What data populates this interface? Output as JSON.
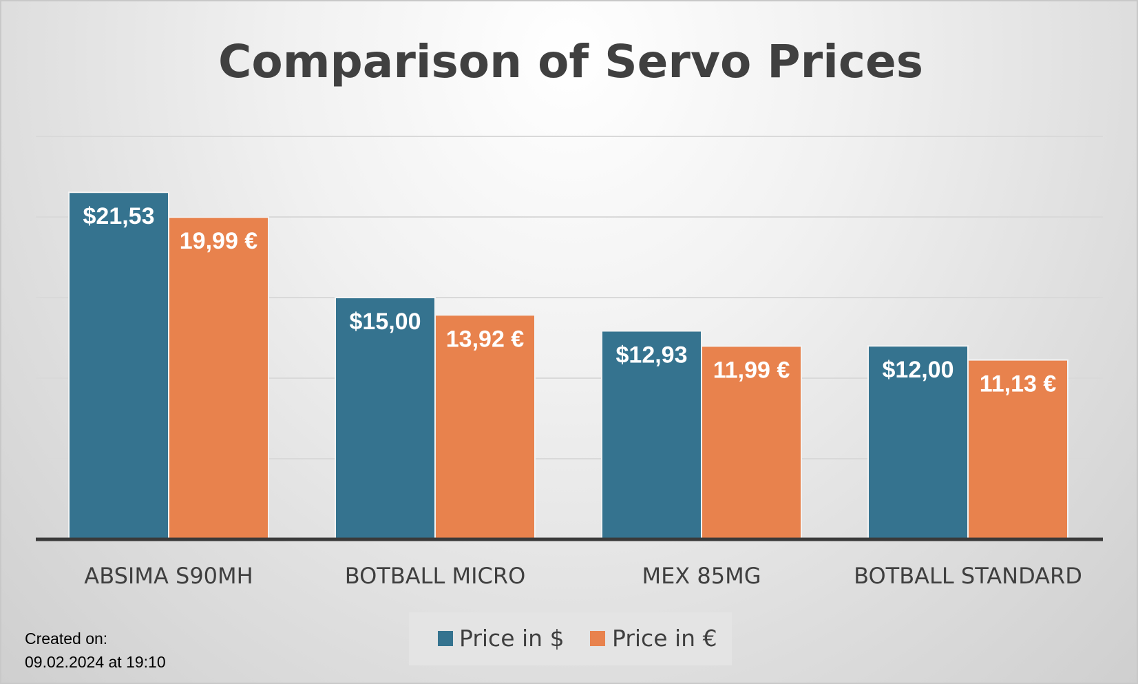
{
  "colors": {
    "series_usd": "#35738f",
    "series_eur": "#e8824d",
    "gridline": "#d9d9d9",
    "baseline": "#3a3a3a",
    "legend_bg": "#e4e4e4"
  },
  "chart_data": {
    "type": "bar",
    "title": "Comparison of Servo Prices",
    "xlabel": "",
    "ylabel": "",
    "categories": [
      "ABSIMA S90MH",
      "BOTBALL MICRO",
      "MEX 85MG",
      "BOTBALL STANDARD"
    ],
    "series": [
      {
        "name": "Price in $",
        "values": [
          21.53,
          15.0,
          12.93,
          12.0
        ],
        "labels": [
          "$21,53",
          "$15,00",
          "$12,93",
          "$12,00"
        ]
      },
      {
        "name": "Price in €",
        "values": [
          19.99,
          13.92,
          11.99,
          11.13
        ],
        "labels": [
          "19,99 €",
          "13,92 €",
          "11,99 €",
          "11,13 €"
        ]
      }
    ],
    "ylim": [
      0,
      25
    ],
    "ytick_step": 5,
    "grid": true,
    "legend_position": "bottom",
    "data_labels": "inside-top"
  },
  "footnote": {
    "line1": "Created on:",
    "line2": "09.02.2024 at 19:10"
  }
}
